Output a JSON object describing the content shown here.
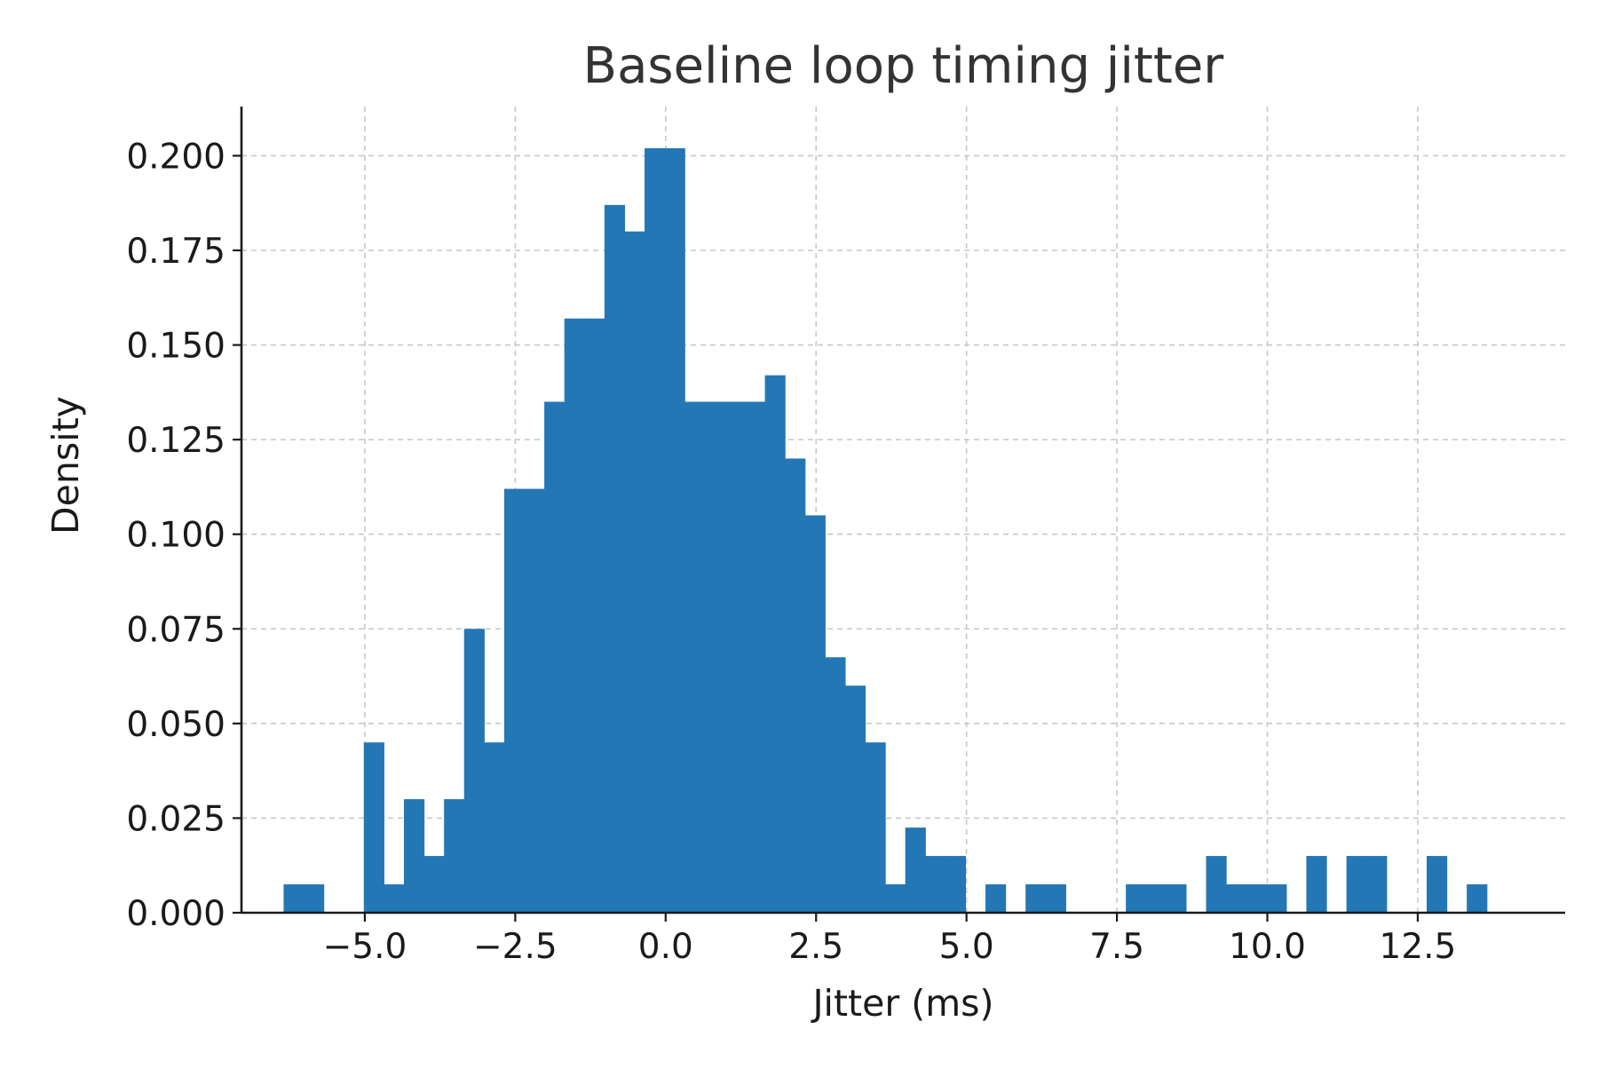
{
  "chart_data": {
    "type": "bar",
    "subtype": "histogram",
    "title": "Baseline loop timing jitter",
    "xlabel": "Jitter (ms)",
    "ylabel": "Density",
    "xlim": [
      -7.05,
      14.95
    ],
    "ylim": [
      0,
      0.213
    ],
    "grid": true,
    "bar_color": "#2477b5",
    "x_ticks": [
      {
        "value": -5.0,
        "label": "−5.0"
      },
      {
        "value": -2.5,
        "label": "−2.5"
      },
      {
        "value": 0.0,
        "label": "0.0"
      },
      {
        "value": 2.5,
        "label": "2.5"
      },
      {
        "value": 5.0,
        "label": "5.0"
      },
      {
        "value": 7.5,
        "label": "7.5"
      },
      {
        "value": 10.0,
        "label": "10.0"
      },
      {
        "value": 12.5,
        "label": "12.5"
      }
    ],
    "y_ticks": [
      {
        "value": 0.0,
        "label": "0.000"
      },
      {
        "value": 0.025,
        "label": "0.025"
      },
      {
        "value": 0.05,
        "label": "0.050"
      },
      {
        "value": 0.075,
        "label": "0.075"
      },
      {
        "value": 0.1,
        "label": "0.100"
      },
      {
        "value": 0.125,
        "label": "0.125"
      },
      {
        "value": 0.15,
        "label": "0.150"
      },
      {
        "value": 0.175,
        "label": "0.175"
      },
      {
        "value": 0.2,
        "label": "0.200"
      }
    ],
    "bin_start": -6.35,
    "bin_width": 0.3333,
    "values": [
      0.0075,
      0.0075,
      0.0,
      0.0,
      0.045,
      0.0075,
      0.03,
      0.015,
      0.03,
      0.075,
      0.045,
      0.112,
      0.112,
      0.135,
      0.157,
      0.157,
      0.187,
      0.18,
      0.202,
      0.202,
      0.135,
      0.135,
      0.135,
      0.135,
      0.142,
      0.12,
      0.105,
      0.0675,
      0.06,
      0.045,
      0.0075,
      0.0225,
      0.015,
      0.015,
      0.0,
      0.0075,
      0.0,
      0.0075,
      0.0075,
      0.0,
      0.0,
      0.0,
      0.0075,
      0.0075,
      0.0075,
      0.0,
      0.015,
      0.0075,
      0.0075,
      0.0075,
      0.0,
      0.015,
      0.0,
      0.015,
      0.015,
      0.0,
      0.0,
      0.015,
      0.0,
      0.0075
    ]
  }
}
